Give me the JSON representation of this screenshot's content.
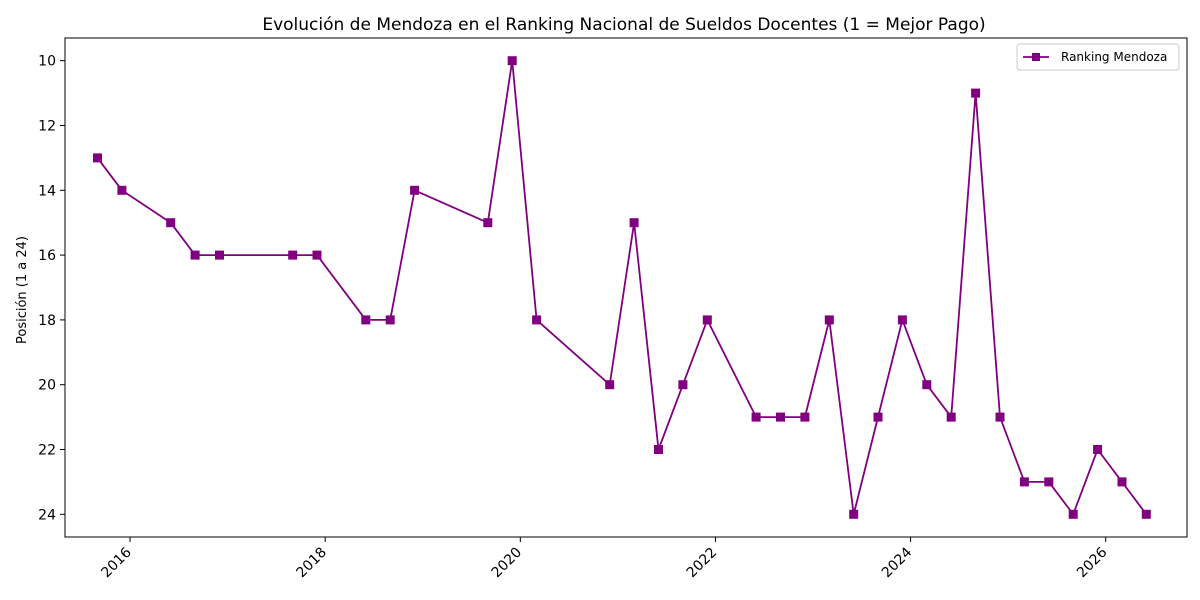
{
  "chart_data": {
    "type": "line",
    "title": "Evolución de Mendoza en el Ranking Nacional de Sueldos Docentes (1 = Mejor Pago)",
    "xlabel": "",
    "ylabel": "Posición (1 a 24)",
    "y_inverted": true,
    "ylim": [
      24.7,
      9.3
    ],
    "xlim": [
      "2015-05-01",
      "2026-11-01"
    ],
    "x_ticks": [
      "2016",
      "2018",
      "2020",
      "2022",
      "2024",
      "2026"
    ],
    "y_ticks": [
      "10",
      "12",
      "14",
      "16",
      "18",
      "20",
      "22",
      "24"
    ],
    "grid": false,
    "legend_position": "top-right",
    "color": "#800080",
    "marker": "square",
    "series": [
      {
        "name": "Ranking Mendoza",
        "x": [
          "2015-09",
          "2015-12",
          "2016-06",
          "2016-09",
          "2016-12",
          "2017-09",
          "2017-12",
          "2018-06",
          "2018-09",
          "2018-12",
          "2019-09",
          "2019-12",
          "2020-03",
          "2020-12",
          "2021-03",
          "2021-06",
          "2021-09",
          "2021-12",
          "2022-06",
          "2022-09",
          "2022-12",
          "2023-03",
          "2023-06",
          "2023-09",
          "2023-12",
          "2024-03",
          "2024-06",
          "2024-09",
          "2024-12",
          "2025-03",
          "2025-06",
          "2025-09",
          "2025-12",
          "2026-03",
          "2026-06"
        ],
        "values": [
          13,
          14,
          15,
          16,
          16,
          16,
          16,
          18,
          18,
          14,
          15,
          10,
          18,
          20,
          15,
          22,
          20,
          18,
          21,
          21,
          21,
          18,
          24,
          21,
          18,
          20,
          21,
          11,
          21,
          23,
          23,
          24,
          22,
          23,
          24
        ]
      }
    ]
  }
}
